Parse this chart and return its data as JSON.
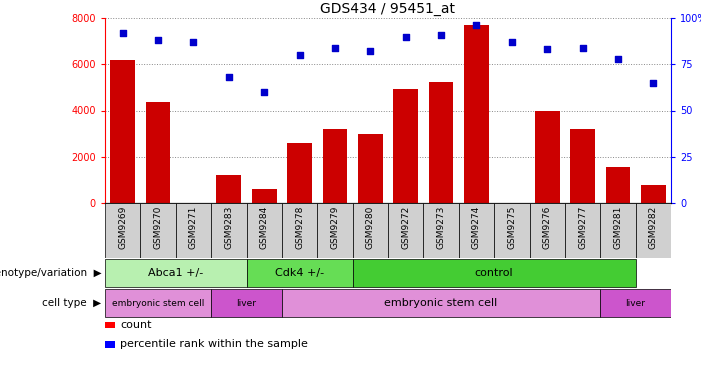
{
  "title": "GDS434 / 95451_at",
  "samples": [
    "GSM9269",
    "GSM9270",
    "GSM9271",
    "GSM9283",
    "GSM9284",
    "GSM9278",
    "GSM9279",
    "GSM9280",
    "GSM9272",
    "GSM9273",
    "GSM9274",
    "GSM9275",
    "GSM9276",
    "GSM9277",
    "GSM9281",
    "GSM9282"
  ],
  "counts": [
    6200,
    4350,
    0,
    1200,
    600,
    2600,
    3200,
    3000,
    4950,
    5250,
    7700,
    0,
    4000,
    3200,
    1550,
    800
  ],
  "percentiles": [
    92,
    88,
    87,
    68,
    60,
    80,
    84,
    82,
    90,
    91,
    96,
    87,
    83,
    84,
    78,
    65
  ],
  "bar_color": "#cc0000",
  "dot_color": "#0000cc",
  "ylim_left": [
    0,
    8000
  ],
  "ylim_right": [
    0,
    100
  ],
  "yticks_left": [
    0,
    2000,
    4000,
    6000,
    8000
  ],
  "yticks_right": [
    0,
    25,
    50,
    75,
    100
  ],
  "genotype_groups": [
    {
      "label": "Abca1 +/-",
      "start": 0,
      "end": 4,
      "color": "#b8f0b0"
    },
    {
      "label": "Cdk4 +/-",
      "start": 4,
      "end": 7,
      "color": "#66dd55"
    },
    {
      "label": "control",
      "start": 7,
      "end": 15,
      "color": "#44cc33"
    }
  ],
  "celltype_groups": [
    {
      "label": "embryonic stem cell",
      "start": 0,
      "end": 3,
      "color": "#e090d8"
    },
    {
      "label": "liver",
      "start": 3,
      "end": 5,
      "color": "#cc55cc"
    },
    {
      "label": "embryonic stem cell",
      "start": 5,
      "end": 14,
      "color": "#e090d8"
    },
    {
      "label": "liver",
      "start": 14,
      "end": 16,
      "color": "#cc55cc"
    }
  ],
  "xtick_bg": "#d0d0d0",
  "background_color": "#ffffff",
  "grid_color": "#888888"
}
